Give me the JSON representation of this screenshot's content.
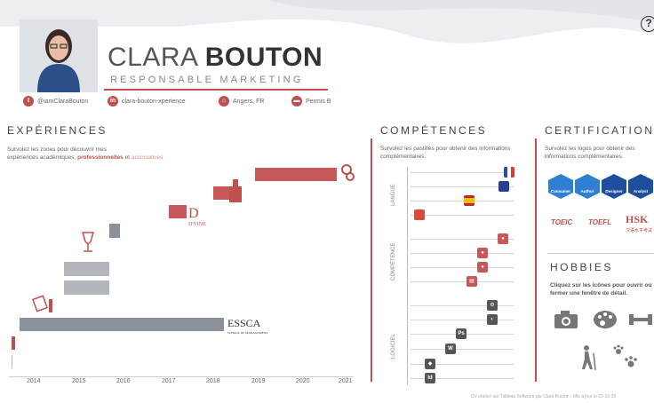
{
  "header": {
    "name_first": "CLARA",
    "name_last": "BOUTON",
    "subtitle": "RESPONSABLE MARKETING",
    "help_label": "?"
  },
  "contacts": [
    {
      "icon": "twitter-icon",
      "glyph": "t",
      "label": "@iamClaraBouton"
    },
    {
      "icon": "linkedin-icon",
      "glyph": "in",
      "label": "clara-bouton-xperience"
    },
    {
      "icon": "home-icon",
      "glyph": "⌂",
      "label": "Angers, FR"
    },
    {
      "icon": "car-icon",
      "glyph": "▬",
      "label": "Permis B"
    }
  ],
  "experiences": {
    "title": "EXPÉRIENCES",
    "desc_part1": "Survolez les zones pour découvrir mes",
    "desc_part2": "expériences académiques,",
    "desc_pro": "professionnelles",
    "desc_part3": "et",
    "desc_asso": "associatives.",
    "logo_divine": "D'VINE",
    "logo_essca": "ESSCA",
    "logo_essca_sub": "SCHOOL OF MANAGEMENT",
    "years": [
      "2014",
      "2015",
      "2016",
      "2017",
      "2018",
      "2019",
      "2020",
      "2021"
    ]
  },
  "competences": {
    "title": "COMPÉTENCES",
    "desc": "Survolez les pastilles pour obtenir des informations complémentaires.",
    "categories": [
      "LANGUE",
      "COMPÉTENCE",
      "LOGICIEL"
    ],
    "software_labels": {
      "ps": "Ps",
      "id": "Id"
    }
  },
  "certifications": {
    "title": "CERTIFICATIONS",
    "desc": "Survolez les logos pour obtenir des informations complémentaires.",
    "badges": [
      "Consumer",
      "Author",
      "Designer",
      "Analyst"
    ],
    "toeic": "TOEIC",
    "toefl": "TOEFL",
    "hsk": "HSK",
    "hsk_sub": "汉语水平考试"
  },
  "hobbies": {
    "title": "HOBBIES",
    "desc": "Cliquez sur les icônes pour ouvrir ou fermer une fenêtre de détail."
  },
  "footer": "CV réalisé sur Tableau Software par Clara Bouton - Mis à jour le 22-10-20",
  "colors": {
    "accent": "#c0504d",
    "academic": "#8c929b",
    "badge_blue": "#2f7fd3"
  }
}
